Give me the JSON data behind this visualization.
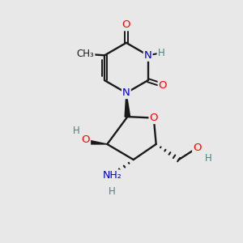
{
  "background_color": "#e8e8e8",
  "bond_color": "#1a1a1a",
  "atom_colors": {
    "O": "#ff0000",
    "N": "#0000cc",
    "H": "#4a8080",
    "C": "#1a1a1a"
  },
  "figsize": [
    3.0,
    3.0
  ],
  "dpi": 100
}
